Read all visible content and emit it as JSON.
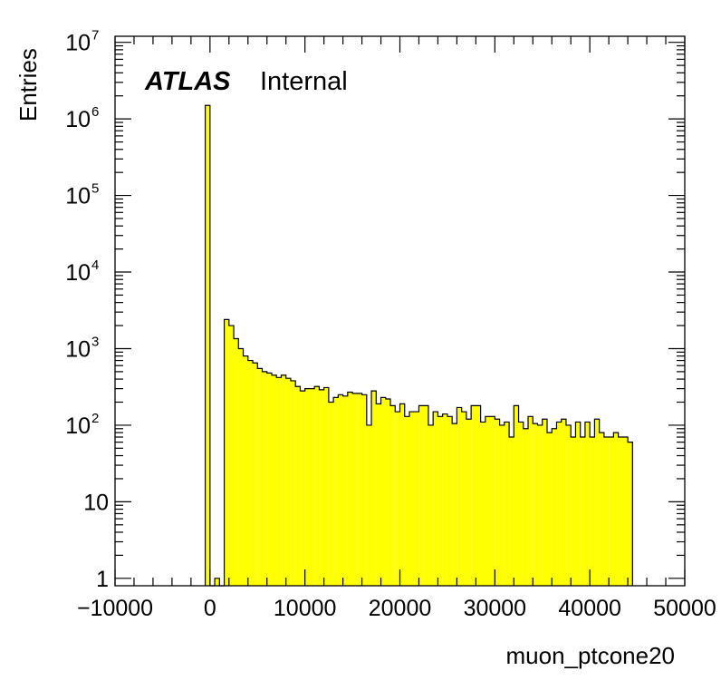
{
  "chart_data": {
    "type": "histogram",
    "xlabel": "muon_ptcone20",
    "ylabel": "Entries",
    "title": "",
    "annotations": {
      "experiment": "ATLAS",
      "status": "Internal"
    },
    "xlim": [
      -10000,
      50000
    ],
    "ylim": [
      0.8,
      12000000
    ],
    "yscale": "log",
    "grid": false,
    "legend": "none",
    "fill_color": "#ffff00",
    "line_color": "#000000",
    "x_ticks": [
      {
        "value": -10000,
        "label": "−10000"
      },
      {
        "value": 0,
        "label": "0"
      },
      {
        "value": 10000,
        "label": "10000"
      },
      {
        "value": 20000,
        "label": "20000"
      },
      {
        "value": 30000,
        "label": "30000"
      },
      {
        "value": 40000,
        "label": "40000"
      },
      {
        "value": 50000,
        "label": "50000"
      }
    ],
    "y_ticks": [
      {
        "value": 1,
        "base": "1",
        "exp": ""
      },
      {
        "value": 10,
        "base": "10",
        "exp": ""
      },
      {
        "value": 100,
        "base": "10",
        "exp": "2"
      },
      {
        "value": 1000,
        "base": "10",
        "exp": "3"
      },
      {
        "value": 10000,
        "base": "10",
        "exp": "4"
      },
      {
        "value": 100000,
        "base": "10",
        "exp": "5"
      },
      {
        "value": 1000000,
        "base": "10",
        "exp": "6"
      },
      {
        "value": 10000000,
        "base": "10",
        "exp": "7"
      }
    ],
    "bin_width": 500,
    "x_start": -500,
    "values": [
      1500000,
      0,
      1,
      0,
      2400,
      2000,
      1350,
      1000,
      800,
      700,
      650,
      550,
      500,
      480,
      450,
      420,
      450,
      410,
      380,
      320,
      280,
      300,
      300,
      320,
      290,
      310,
      200,
      230,
      250,
      240,
      270,
      260,
      260,
      250,
      100,
      280,
      190,
      230,
      220,
      180,
      150,
      190,
      130,
      150,
      150,
      180,
      180,
      100,
      150,
      130,
      140,
      130,
      105,
      170,
      150,
      120,
      180,
      180,
      110,
      130,
      130,
      120,
      100,
      110,
      70,
      180,
      110,
      90,
      130,
      105,
      100,
      120,
      80,
      90,
      110,
      120,
      100,
      70,
      110,
      70,
      110,
      70,
      120,
      80,
      70,
      70,
      80,
      70,
      70,
      60
    ]
  }
}
